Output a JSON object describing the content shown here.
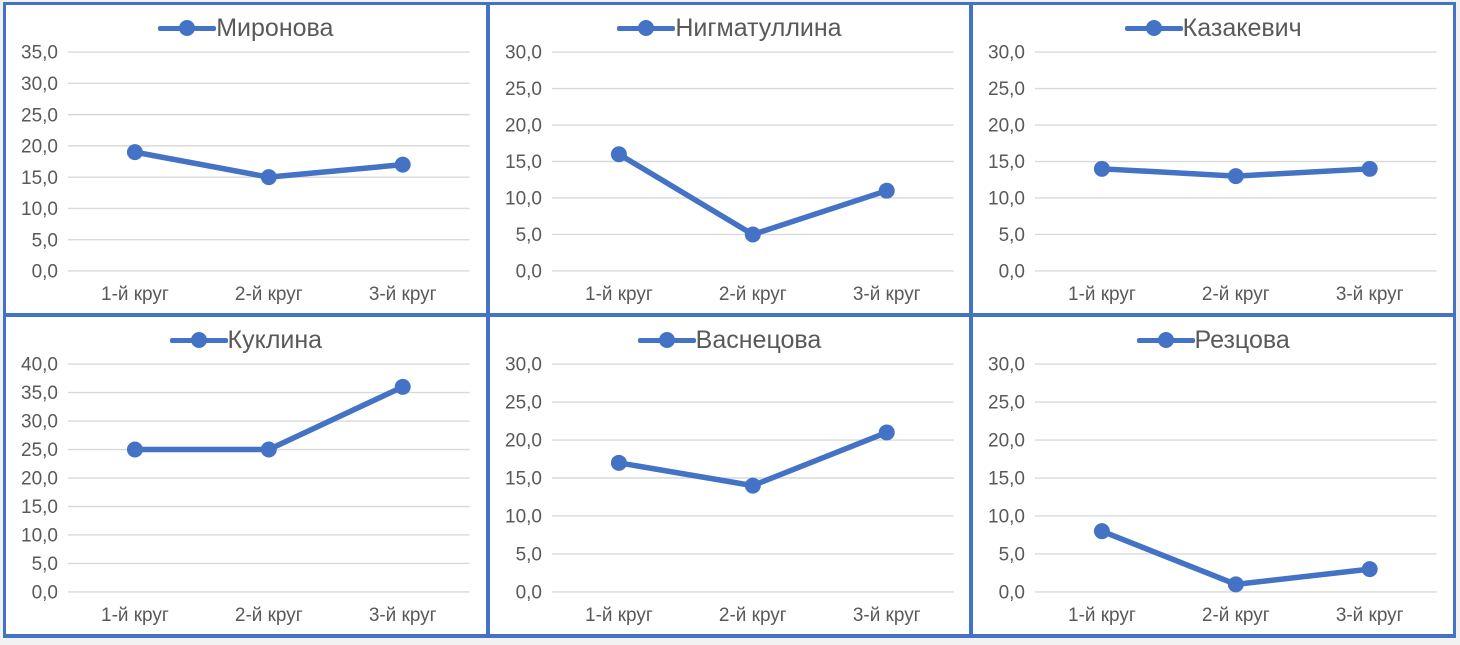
{
  "style": {
    "accent_color": "#4472C4",
    "text_color": "#595959",
    "gridline_color": "#D9D9D9",
    "panel_border_color": "#4472C4",
    "panel_background": "#FFFFFF",
    "page_background": "#F2F2F2"
  },
  "chart_data": [
    {
      "type": "line",
      "legend": "Миронова",
      "legend_position": "top",
      "categories": [
        "1-й круг",
        "2-й круг",
        "3-й круг"
      ],
      "values": [
        19,
        15,
        17
      ],
      "ylim": [
        0,
        35
      ],
      "ytick_step": 5,
      "ytick_labels": [
        "0,0",
        "5,0",
        "10,0",
        "15,0",
        "20,0",
        "25,0",
        "30,0",
        "35,0"
      ],
      "grid": true
    },
    {
      "type": "line",
      "legend": "Нигматуллина",
      "legend_position": "top",
      "categories": [
        "1-й круг",
        "2-й круг",
        "3-й круг"
      ],
      "values": [
        16,
        5,
        11
      ],
      "ylim": [
        0,
        30
      ],
      "ytick_step": 5,
      "ytick_labels": [
        "0,0",
        "5,0",
        "10,0",
        "15,0",
        "20,0",
        "25,0",
        "30,0"
      ],
      "grid": true
    },
    {
      "type": "line",
      "legend": "Казакевич",
      "legend_position": "top",
      "categories": [
        "1-й круг",
        "2-й круг",
        "3-й круг"
      ],
      "values": [
        14,
        13,
        14
      ],
      "ylim": [
        0,
        30
      ],
      "ytick_step": 5,
      "ytick_labels": [
        "0,0",
        "5,0",
        "10,0",
        "15,0",
        "20,0",
        "25,0",
        "30,0"
      ],
      "grid": true
    },
    {
      "type": "line",
      "legend": "Куклина",
      "legend_position": "top",
      "categories": [
        "1-й круг",
        "2-й круг",
        "3-й круг"
      ],
      "values": [
        25,
        25,
        36
      ],
      "ylim": [
        0,
        40
      ],
      "ytick_step": 5,
      "ytick_labels": [
        "0,0",
        "5,0",
        "10,0",
        "15,0",
        "20,0",
        "25,0",
        "30,0",
        "35,0",
        "40,0"
      ],
      "grid": true
    },
    {
      "type": "line",
      "legend": "Васнецова",
      "legend_position": "top",
      "categories": [
        "1-й круг",
        "2-й круг",
        "3-й круг"
      ],
      "values": [
        17,
        14,
        21
      ],
      "ylim": [
        0,
        30
      ],
      "ytick_step": 5,
      "ytick_labels": [
        "0,0",
        "5,0",
        "10,0",
        "15,0",
        "20,0",
        "25,0",
        "30,0"
      ],
      "grid": true
    },
    {
      "type": "line",
      "legend": "Резцова",
      "legend_position": "top",
      "categories": [
        "1-й круг",
        "2-й круг",
        "3-й круг"
      ],
      "values": [
        8,
        1,
        3
      ],
      "ylim": [
        0,
        30
      ],
      "ytick_step": 5,
      "ytick_labels": [
        "0,0",
        "5,0",
        "10,0",
        "15,0",
        "20,0",
        "25,0",
        "30,0"
      ],
      "grid": true
    }
  ]
}
